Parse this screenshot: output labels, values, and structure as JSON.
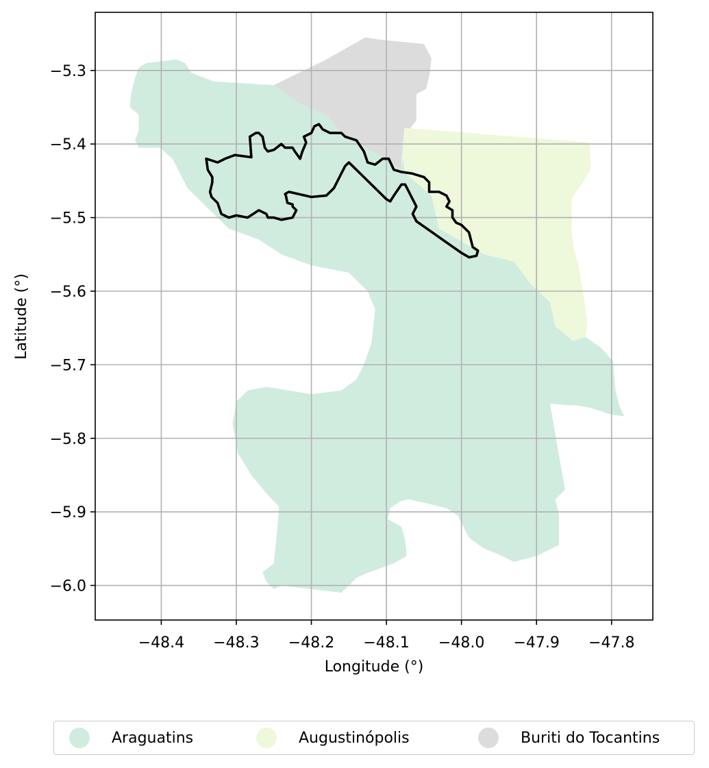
{
  "chart_data": {
    "type": "map",
    "title": "",
    "xlabel": "Longitude (°)",
    "ylabel": "Latitude (°)",
    "xlim": [
      -48.488,
      -47.745
    ],
    "ylim": [
      -6.047,
      -5.221
    ],
    "grid": true,
    "x_ticks": [
      -48.4,
      -48.3,
      -48.2,
      -48.1,
      -48.0,
      -47.9,
      -47.8
    ],
    "x_tick_labels": [
      "−48.4",
      "−48.3",
      "−48.2",
      "−48.1",
      "−48.0",
      "−47.9",
      "−47.8"
    ],
    "y_ticks": [
      -5.3,
      -5.4,
      -5.5,
      -5.6,
      -5.7,
      -5.8,
      -5.9,
      -6.0
    ],
    "y_tick_labels": [
      "−5.3",
      "−5.4",
      "−5.5",
      "−5.6",
      "−5.7",
      "−5.8",
      "−5.9",
      "−6.0"
    ],
    "legend_position": "bottom-center",
    "regions": [
      {
        "name": "Buriti do Tocantins",
        "color": "#dcdcdc",
        "coords": [
          [
            -48.25,
            -5.32
          ],
          [
            -48.18,
            -5.285
          ],
          [
            -48.128,
            -5.255
          ],
          [
            -48.11,
            -5.258
          ],
          [
            -48.05,
            -5.264
          ],
          [
            -48.04,
            -5.283
          ],
          [
            -48.042,
            -5.303
          ],
          [
            -48.047,
            -5.325
          ],
          [
            -48.06,
            -5.332
          ],
          [
            -48.06,
            -5.368
          ],
          [
            -48.072,
            -5.383
          ],
          [
            -48.079,
            -5.398
          ],
          [
            -48.08,
            -5.435
          ],
          [
            -48.1,
            -5.42
          ],
          [
            -48.155,
            -5.39
          ],
          [
            -48.18,
            -5.36
          ],
          [
            -48.215,
            -5.345
          ],
          [
            -48.235,
            -5.33
          ]
        ]
      },
      {
        "name": "Augustinópolis",
        "color": "#eef8da",
        "coords": [
          [
            -48.076,
            -5.378
          ],
          [
            -47.829,
            -5.398
          ],
          [
            -47.828,
            -5.435
          ],
          [
            -47.84,
            -5.455
          ],
          [
            -47.853,
            -5.473
          ],
          [
            -47.853,
            -5.52
          ],
          [
            -47.85,
            -5.545
          ],
          [
            -47.845,
            -5.56
          ],
          [
            -47.84,
            -5.59
          ],
          [
            -47.836,
            -5.615
          ],
          [
            -47.832,
            -5.645
          ],
          [
            -47.835,
            -5.662
          ],
          [
            -47.851,
            -5.668
          ],
          [
            -47.875,
            -5.648
          ],
          [
            -47.882,
            -5.615
          ],
          [
            -47.908,
            -5.59
          ],
          [
            -47.93,
            -5.56
          ],
          [
            -47.97,
            -5.55
          ],
          [
            -48.03,
            -5.515
          ],
          [
            -48.04,
            -5.47
          ],
          [
            -48.075,
            -5.44
          ],
          [
            -48.08,
            -5.41
          ]
        ]
      },
      {
        "name": "Araguatins",
        "color": "#d0ecdf",
        "coords": [
          [
            -48.43,
            -5.296
          ],
          [
            -48.42,
            -5.29
          ],
          [
            -48.38,
            -5.285
          ],
          [
            -48.368,
            -5.29
          ],
          [
            -48.36,
            -5.303
          ],
          [
            -48.33,
            -5.315
          ],
          [
            -48.25,
            -5.32
          ],
          [
            -48.235,
            -5.33
          ],
          [
            -48.215,
            -5.345
          ],
          [
            -48.18,
            -5.36
          ],
          [
            -48.155,
            -5.39
          ],
          [
            -48.1,
            -5.42
          ],
          [
            -48.08,
            -5.435
          ],
          [
            -48.076,
            -5.378
          ],
          [
            -48.08,
            -5.41
          ],
          [
            -48.075,
            -5.44
          ],
          [
            -48.04,
            -5.47
          ],
          [
            -48.03,
            -5.515
          ],
          [
            -47.97,
            -5.55
          ],
          [
            -47.93,
            -5.56
          ],
          [
            -47.908,
            -5.59
          ],
          [
            -47.882,
            -5.615
          ],
          [
            -47.875,
            -5.648
          ],
          [
            -47.851,
            -5.668
          ],
          [
            -47.835,
            -5.662
          ],
          [
            -47.815,
            -5.676
          ],
          [
            -47.798,
            -5.695
          ],
          [
            -47.795,
            -5.733
          ],
          [
            -47.79,
            -5.755
          ],
          [
            -47.783,
            -5.77
          ],
          [
            -47.8,
            -5.768
          ],
          [
            -47.83,
            -5.758
          ],
          [
            -47.85,
            -5.755
          ],
          [
            -47.86,
            -5.755
          ],
          [
            -47.882,
            -5.753
          ],
          [
            -47.862,
            -5.87
          ],
          [
            -47.875,
            -5.883
          ],
          [
            -47.87,
            -5.903
          ],
          [
            -47.87,
            -5.945
          ],
          [
            -47.9,
            -5.96
          ],
          [
            -47.93,
            -5.968
          ],
          [
            -47.95,
            -5.958
          ],
          [
            -47.97,
            -5.95
          ],
          [
            -47.99,
            -5.935
          ],
          [
            -48.005,
            -5.905
          ],
          [
            -48.02,
            -5.895
          ],
          [
            -48.04,
            -5.89
          ],
          [
            -48.07,
            -5.883
          ],
          [
            -48.08,
            -5.885
          ],
          [
            -48.095,
            -5.895
          ],
          [
            -48.098,
            -5.91
          ],
          [
            -48.08,
            -5.92
          ],
          [
            -48.075,
            -5.938
          ],
          [
            -48.073,
            -5.96
          ],
          [
            -48.09,
            -5.97
          ],
          [
            -48.13,
            -5.985
          ],
          [
            -48.14,
            -5.99
          ],
          [
            -48.15,
            -6.0
          ],
          [
            -48.16,
            -6.01
          ],
          [
            -48.2,
            -6.005
          ],
          [
            -48.24,
            -6.0
          ],
          [
            -48.25,
            -6.005
          ],
          [
            -48.26,
            -5.995
          ],
          [
            -48.265,
            -5.982
          ],
          [
            -48.25,
            -5.97
          ],
          [
            -48.245,
            -5.92
          ],
          [
            -48.243,
            -5.893
          ],
          [
            -48.26,
            -5.875
          ],
          [
            -48.28,
            -5.85
          ],
          [
            -48.298,
            -5.82
          ],
          [
            -48.305,
            -5.78
          ],
          [
            -48.3,
            -5.75
          ],
          [
            -48.285,
            -5.735
          ],
          [
            -48.26,
            -5.73
          ],
          [
            -48.23,
            -5.735
          ],
          [
            -48.2,
            -5.74
          ],
          [
            -48.16,
            -5.735
          ],
          [
            -48.14,
            -5.72
          ],
          [
            -48.13,
            -5.7
          ],
          [
            -48.12,
            -5.67
          ],
          [
            -48.115,
            -5.625
          ],
          [
            -48.125,
            -5.6
          ],
          [
            -48.15,
            -5.575
          ],
          [
            -48.2,
            -5.565
          ],
          [
            -48.24,
            -5.55
          ],
          [
            -48.27,
            -5.53
          ],
          [
            -48.31,
            -5.515
          ],
          [
            -48.335,
            -5.49
          ],
          [
            -48.365,
            -5.46
          ],
          [
            -48.385,
            -5.42
          ],
          [
            -48.402,
            -5.405
          ],
          [
            -48.43,
            -5.405
          ],
          [
            -48.435,
            -5.395
          ],
          [
            -48.43,
            -5.382
          ],
          [
            -48.43,
            -5.36
          ],
          [
            -48.442,
            -5.35
          ],
          [
            -48.44,
            -5.33
          ],
          [
            -48.435,
            -5.31
          ]
        ]
      }
    ],
    "outline": {
      "color": "#000000",
      "coords": [
        [
          -48.34,
          -5.42
        ],
        [
          -48.325,
          -5.425
        ],
        [
          -48.315,
          -5.42
        ],
        [
          -48.302,
          -5.415
        ],
        [
          -48.28,
          -5.418
        ],
        [
          -48.282,
          -5.39
        ],
        [
          -48.274,
          -5.385
        ],
        [
          -48.27,
          -5.385
        ],
        [
          -48.265,
          -5.39
        ],
        [
          -48.262,
          -5.405
        ],
        [
          -48.258,
          -5.41
        ],
        [
          -48.25,
          -5.408
        ],
        [
          -48.24,
          -5.4
        ],
        [
          -48.235,
          -5.405
        ],
        [
          -48.225,
          -5.405
        ],
        [
          -48.222,
          -5.41
        ],
        [
          -48.215,
          -5.42
        ],
        [
          -48.212,
          -5.41
        ],
        [
          -48.207,
          -5.398
        ],
        [
          -48.21,
          -5.39
        ],
        [
          -48.2,
          -5.385
        ],
        [
          -48.196,
          -5.376
        ],
        [
          -48.19,
          -5.373
        ],
        [
          -48.185,
          -5.38
        ],
        [
          -48.175,
          -5.385
        ],
        [
          -48.16,
          -5.385
        ],
        [
          -48.155,
          -5.39
        ],
        [
          -48.14,
          -5.395
        ],
        [
          -48.13,
          -5.41
        ],
        [
          -48.125,
          -5.425
        ],
        [
          -48.115,
          -5.428
        ],
        [
          -48.105,
          -5.42
        ],
        [
          -48.097,
          -5.42
        ],
        [
          -48.09,
          -5.435
        ],
        [
          -48.08,
          -5.438
        ],
        [
          -48.066,
          -5.44
        ],
        [
          -48.05,
          -5.445
        ],
        [
          -48.043,
          -5.452
        ],
        [
          -48.043,
          -5.465
        ],
        [
          -48.03,
          -5.465
        ],
        [
          -48.02,
          -5.47
        ],
        [
          -48.016,
          -5.478
        ],
        [
          -48.02,
          -5.485
        ],
        [
          -48.012,
          -5.49
        ],
        [
          -48.012,
          -5.5
        ],
        [
          -48.007,
          -5.507
        ],
        [
          -48.0,
          -5.51
        ],
        [
          -47.99,
          -5.52
        ],
        [
          -47.985,
          -5.54
        ],
        [
          -47.978,
          -5.545
        ],
        [
          -47.98,
          -5.552
        ],
        [
          -47.99,
          -5.554
        ],
        [
          -48.0,
          -5.548
        ],
        [
          -48.06,
          -5.505
        ],
        [
          -48.065,
          -5.495
        ],
        [
          -48.06,
          -5.485
        ],
        [
          -48.065,
          -5.475
        ],
        [
          -48.075,
          -5.455
        ],
        [
          -48.08,
          -5.455
        ],
        [
          -48.09,
          -5.47
        ],
        [
          -48.095,
          -5.478
        ],
        [
          -48.1,
          -5.475
        ],
        [
          -48.11,
          -5.465
        ],
        [
          -48.12,
          -5.455
        ],
        [
          -48.13,
          -5.445
        ],
        [
          -48.14,
          -5.435
        ],
        [
          -48.15,
          -5.425
        ],
        [
          -48.155,
          -5.43
        ],
        [
          -48.16,
          -5.44
        ],
        [
          -48.17,
          -5.46
        ],
        [
          -48.18,
          -5.47
        ],
        [
          -48.2,
          -5.472
        ],
        [
          -48.23,
          -5.465
        ],
        [
          -48.235,
          -5.468
        ],
        [
          -48.234,
          -5.47
        ],
        [
          -48.232,
          -5.48
        ],
        [
          -48.225,
          -5.482
        ],
        [
          -48.225,
          -5.485
        ],
        [
          -48.22,
          -5.49
        ],
        [
          -48.225,
          -5.5
        ],
        [
          -48.24,
          -5.503
        ],
        [
          -48.25,
          -5.5
        ],
        [
          -48.258,
          -5.5
        ],
        [
          -48.26,
          -5.495
        ],
        [
          -48.27,
          -5.49
        ],
        [
          -48.285,
          -5.5
        ],
        [
          -48.3,
          -5.497
        ],
        [
          -48.31,
          -5.5
        ],
        [
          -48.32,
          -5.495
        ],
        [
          -48.325,
          -5.48
        ],
        [
          -48.333,
          -5.472
        ],
        [
          -48.335,
          -5.465
        ],
        [
          -48.332,
          -5.452
        ],
        [
          -48.332,
          -5.445
        ],
        [
          -48.338,
          -5.435
        ]
      ]
    },
    "legend": [
      {
        "label": "Araguatins",
        "color": "#d0ecdf"
      },
      {
        "label": "Augustinópolis",
        "color": "#eef8da"
      },
      {
        "label": "Buriti do Tocantins",
        "color": "#dcdcdc"
      }
    ]
  }
}
